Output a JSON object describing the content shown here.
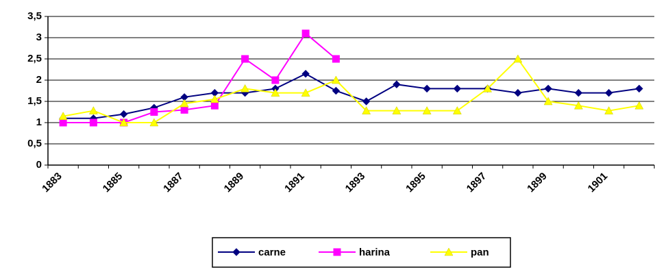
{
  "chart_data": {
    "type": "line",
    "categories": [
      "1883",
      null,
      "1885",
      null,
      "1887",
      null,
      "1889",
      null,
      "1891",
      null,
      "1893",
      null,
      "1895",
      null,
      "1897",
      null,
      "1899",
      null,
      "1901",
      null
    ],
    "series": [
      {
        "name": "carne",
        "color": "#000080",
        "marker": "diamond",
        "values": [
          1.1,
          1.1,
          1.2,
          1.35,
          1.6,
          1.7,
          1.7,
          1.8,
          2.15,
          1.75,
          1.5,
          1.9,
          1.8,
          1.8,
          1.8,
          1.7,
          1.8,
          1.7,
          1.7,
          1.8
        ]
      },
      {
        "name": "harina",
        "color": "#ff00ff",
        "marker": "square",
        "values": [
          1.0,
          1.0,
          1.0,
          1.25,
          1.3,
          1.4,
          2.5,
          2.0,
          3.1,
          2.5,
          null,
          null,
          null,
          null,
          null,
          null,
          null,
          null,
          null,
          null
        ]
      },
      {
        "name": "pan",
        "color": "#ffff00",
        "marker": "triangle",
        "values": [
          1.15,
          1.28,
          1.0,
          1.0,
          1.45,
          1.55,
          1.8,
          1.7,
          1.7,
          2.0,
          1.28,
          1.28,
          1.28,
          1.28,
          1.8,
          2.5,
          1.5,
          1.4,
          1.28,
          1.4
        ]
      }
    ],
    "ylim": [
      0,
      3.5
    ],
    "yticks": [
      0,
      {
        "value": 0.5,
        "label": "0,5"
      },
      1,
      {
        "value": 1.5,
        "label": "1,5"
      },
      2,
      {
        "value": 2.5,
        "label": "2,5"
      },
      3,
      {
        "value": 3.5,
        "label": "3,5"
      }
    ],
    "grid": true,
    "legend": "bottom"
  }
}
